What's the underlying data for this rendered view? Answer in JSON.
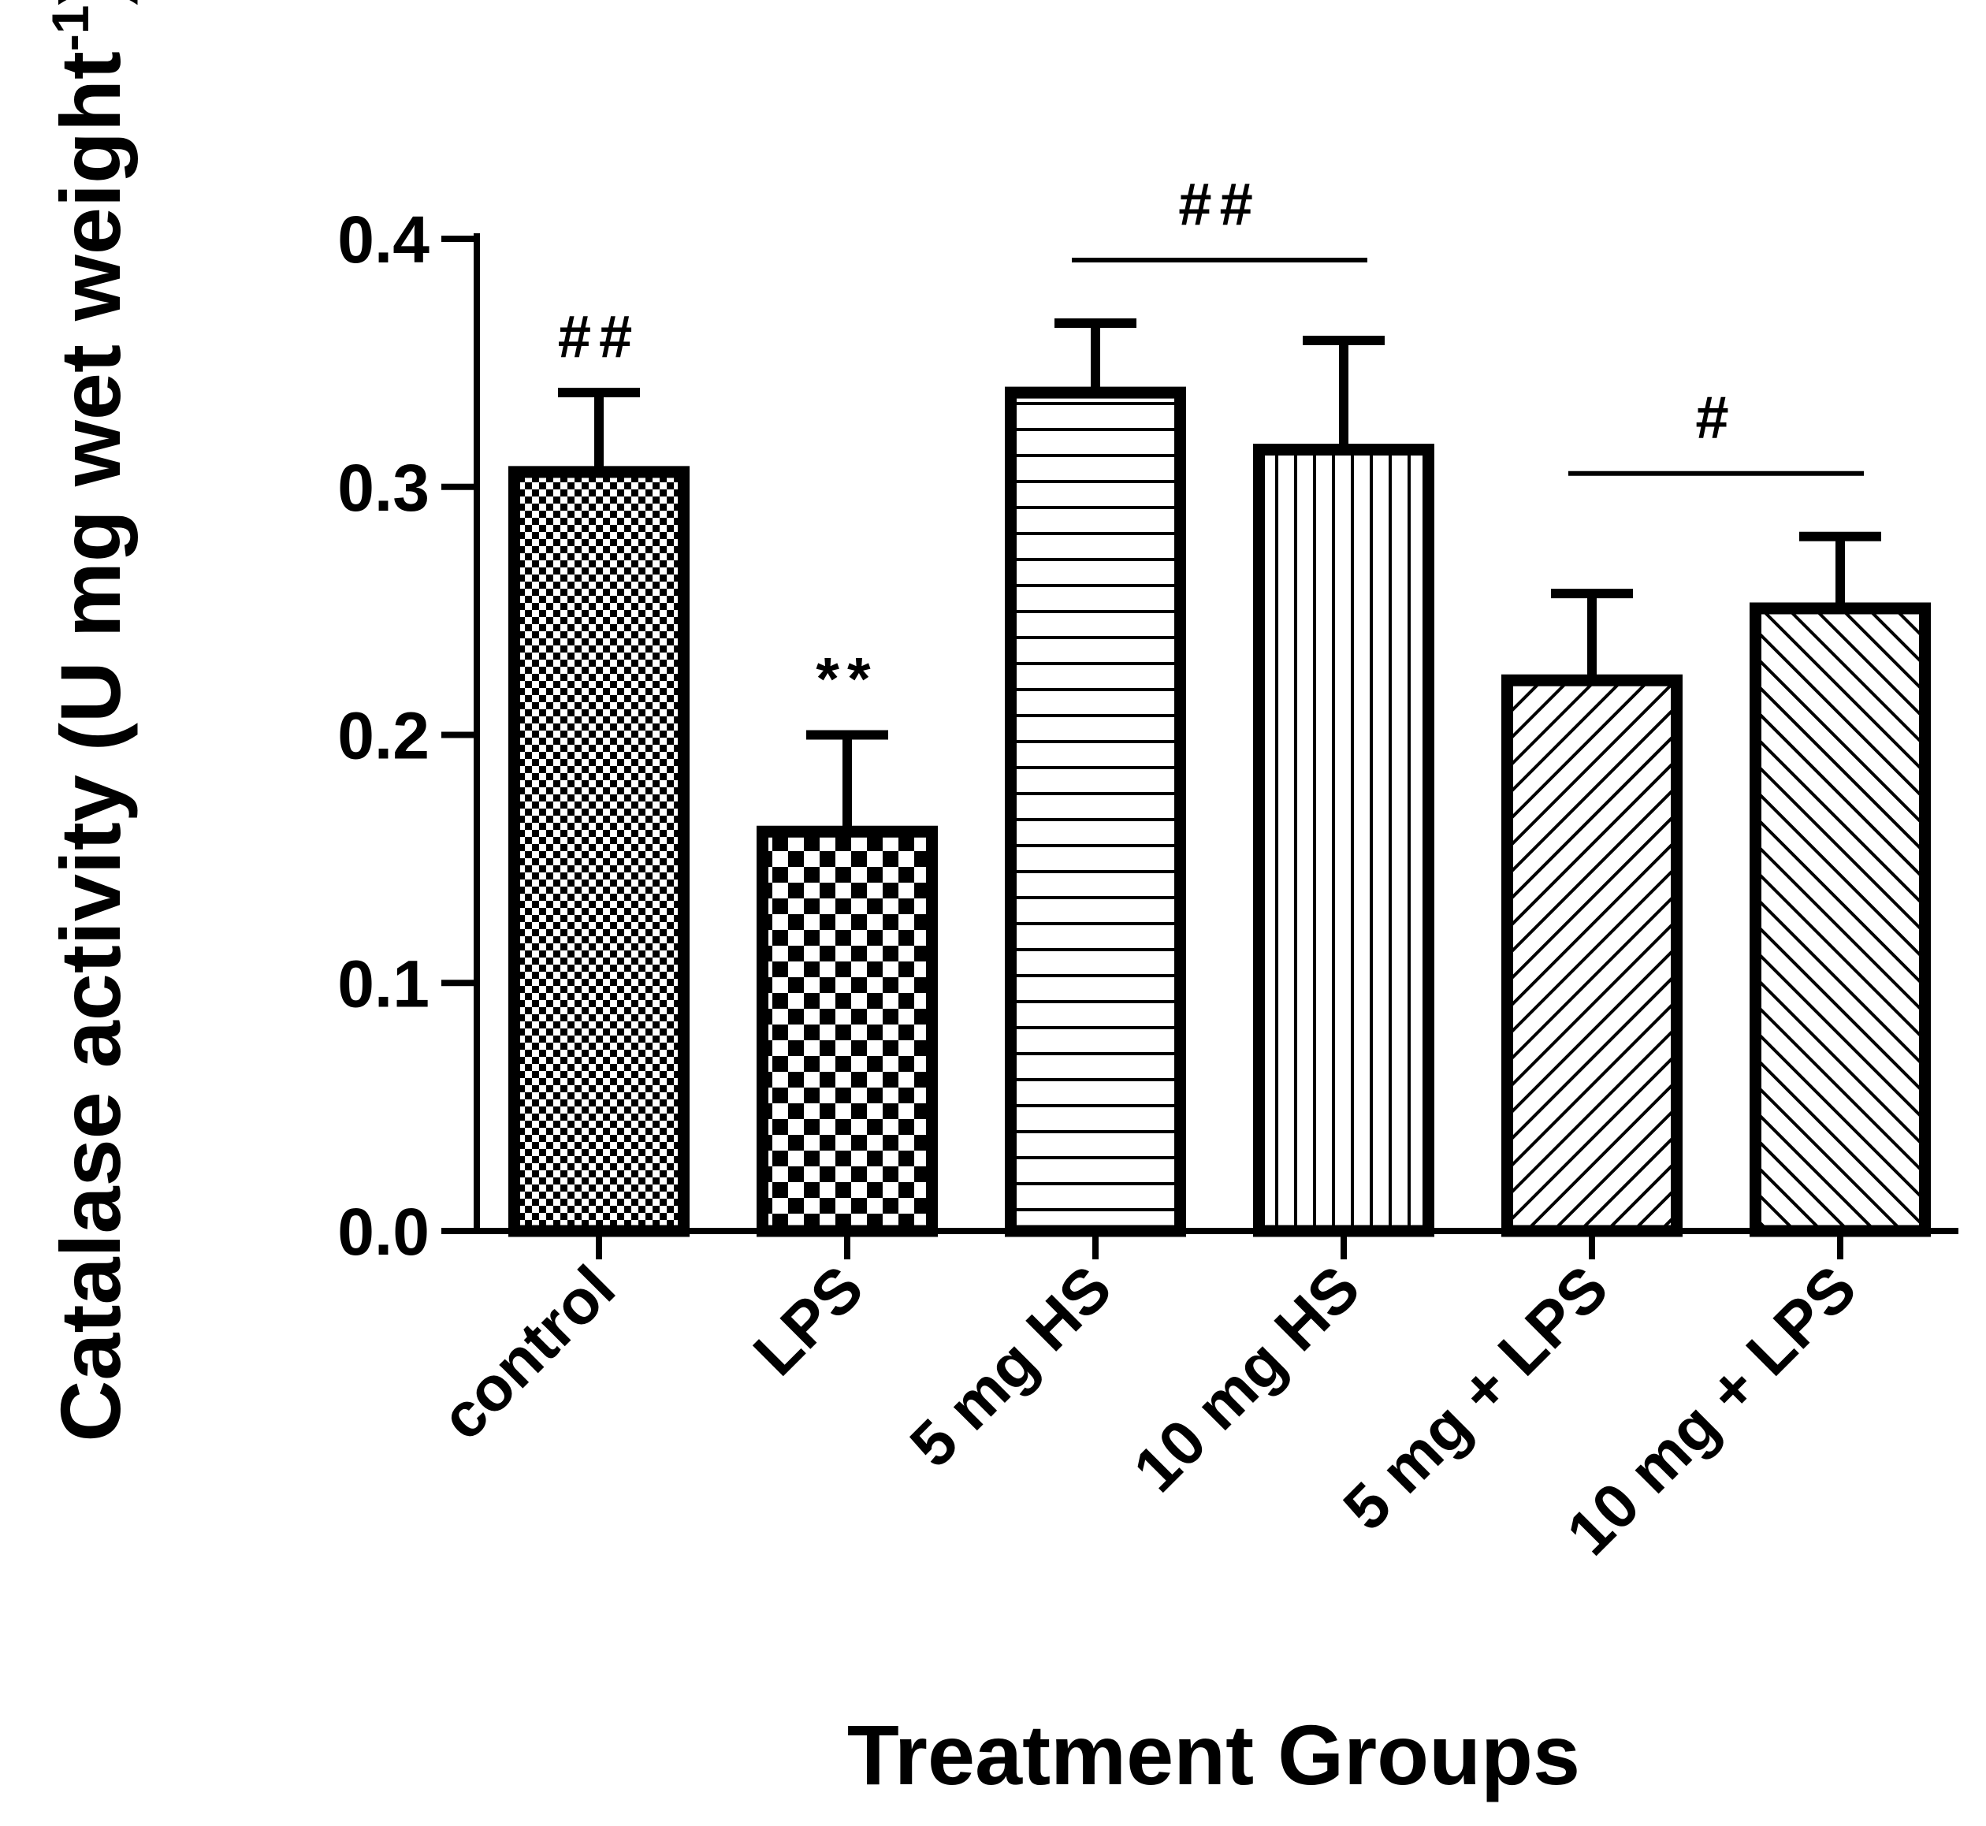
{
  "chart_data": {
    "type": "bar",
    "title": "",
    "xlabel": "Treatment Groups",
    "ylabel": "Catalase activity (U mg wet weight",
    "ylabel_superscript": "-1",
    "ylabel_suffix": ")",
    "ylim": [
      0,
      0.4
    ],
    "yticks": [
      0.0,
      0.1,
      0.2,
      0.3,
      0.4
    ],
    "ytick_labels": [
      "0.0",
      "0.1",
      "0.2",
      "0.3",
      "0.4"
    ],
    "categories": [
      "control",
      "LPS",
      "5 mg HS",
      "10 mg HS",
      "5 mg + LPS",
      "10 mg + LPS"
    ],
    "values": [
      0.306,
      0.161,
      0.338,
      0.315,
      0.222,
      0.251
    ],
    "errors": [
      0.032,
      0.039,
      0.028,
      0.044,
      0.035,
      0.029
    ],
    "patterns": [
      "fine-checker",
      "coarse-checker",
      "horizontal-lines",
      "vertical-lines",
      "diagonal-up",
      "diagonal-down"
    ],
    "annotations": [
      {
        "text": "##",
        "target": "bar",
        "category_index": 0
      },
      {
        "text": "**",
        "target": "bar",
        "category_index": 1
      },
      {
        "text": "##",
        "target": "bracket",
        "from_index": 2,
        "to_index": 3
      },
      {
        "text": "#",
        "target": "bracket",
        "from_index": 4,
        "to_index": 5
      }
    ]
  }
}
